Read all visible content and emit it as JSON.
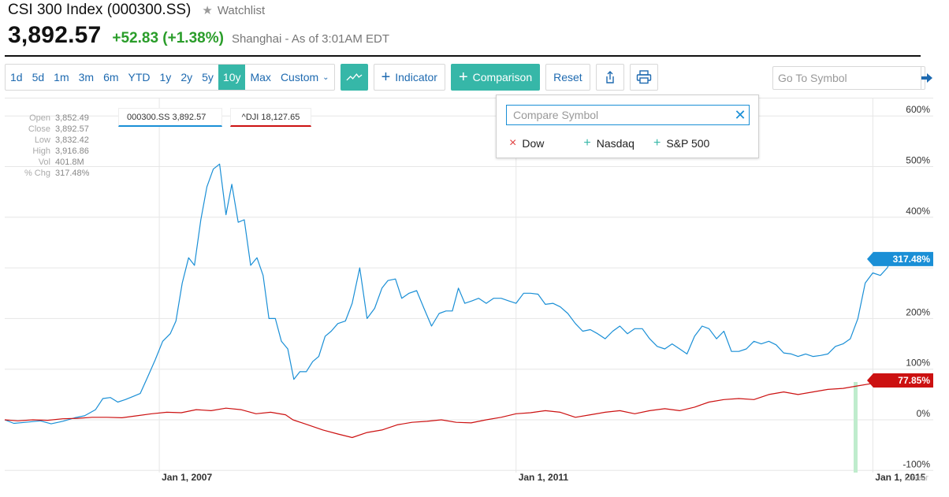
{
  "header": {
    "title": "CSI 300 Index (000300.SS)",
    "watchlist_label": "Watchlist",
    "price": "3,892.57",
    "change": "+52.83 (+1.38%)",
    "exchange_info": "Shanghai - As of 3:01AM EDT",
    "change_color": "#2a9d2a"
  },
  "toolbar": {
    "ranges": [
      "1d",
      "5d",
      "1m",
      "3m",
      "6m",
      "YTD",
      "1y",
      "2y",
      "5y",
      "10y",
      "Max"
    ],
    "active_range": "10y",
    "custom_label": "Custom",
    "indicator_label": "Indicator",
    "comparison_label": "Comparison",
    "reset_label": "Reset",
    "goto_placeholder": "Go To Symbol",
    "accent": "#36b7a8"
  },
  "stats": [
    {
      "label": "Open",
      "value": "3,852.49"
    },
    {
      "label": "Close",
      "value": "3,892.57"
    },
    {
      "label": "Low",
      "value": "3,832.42"
    },
    {
      "label": "High",
      "value": "3,916.86"
    },
    {
      "label": "Vol",
      "value": "401.8M"
    },
    {
      "label": "% Chg",
      "value": "317.48%"
    }
  ],
  "legend": {
    "primary": "000300.SS 3,892.57",
    "secondary": "^DJI 18,127.65"
  },
  "comparison_panel": {
    "placeholder": "Compare Symbol",
    "options": [
      {
        "label": "Dow",
        "symbol": "×"
      },
      {
        "label": "Nasdaq",
        "symbol": "+"
      },
      {
        "label": "S&P 500",
        "symbol": "+"
      }
    ]
  },
  "chart_data": {
    "type": "line",
    "scale": "Linear",
    "ylim": [
      -100,
      600
    ],
    "yticks": [
      600,
      500,
      400,
      300,
      200,
      100,
      0,
      -100
    ],
    "ytick_labels": [
      "600%",
      "500%",
      "400%",
      "300%",
      "200%",
      "100%",
      "0%",
      "-100%"
    ],
    "xlim": [
      "2005-04-08",
      "2015-04-10"
    ],
    "xtick_labels": [
      {
        "date": "2007-01-01",
        "label": "Jan 1, 2007"
      },
      {
        "date": "2011-01-01",
        "label": "Jan 1, 2011"
      },
      {
        "date": "2015-01-01",
        "label": "Jan 1, 2015"
      }
    ],
    "series": [
      {
        "name": "000300.SS",
        "color": "#1a8fd6",
        "last_label": "317.48%",
        "points": [
          [
            "2005-04-08",
            0
          ],
          [
            "2005-05-15",
            -7
          ],
          [
            "2005-07-01",
            -5
          ],
          [
            "2005-09-01",
            -2
          ],
          [
            "2005-10-15",
            -8
          ],
          [
            "2005-12-01",
            -3
          ],
          [
            "2006-01-20",
            4
          ],
          [
            "2006-03-01",
            8
          ],
          [
            "2006-04-15",
            20
          ],
          [
            "2006-05-15",
            42
          ],
          [
            "2006-06-15",
            44
          ],
          [
            "2006-07-15",
            35
          ],
          [
            "2006-08-15",
            40
          ],
          [
            "2006-09-15",
            46
          ],
          [
            "2006-10-15",
            52
          ],
          [
            "2006-11-15",
            85
          ],
          [
            "2006-12-15",
            118
          ],
          [
            "2007-01-15",
            155
          ],
          [
            "2007-02-15",
            170
          ],
          [
            "2007-03-10",
            195
          ],
          [
            "2007-04-05",
            270
          ],
          [
            "2007-05-01",
            320
          ],
          [
            "2007-05-25",
            305
          ],
          [
            "2007-06-20",
            395
          ],
          [
            "2007-07-15",
            460
          ],
          [
            "2007-08-10",
            495
          ],
          [
            "2007-09-05",
            505
          ],
          [
            "2007-10-01",
            405
          ],
          [
            "2007-10-25",
            465
          ],
          [
            "2007-11-20",
            390
          ],
          [
            "2007-12-15",
            395
          ],
          [
            "2008-01-10",
            305
          ],
          [
            "2008-02-05",
            320
          ],
          [
            "2008-03-01",
            285
          ],
          [
            "2008-03-25",
            200
          ],
          [
            "2008-04-20",
            200
          ],
          [
            "2008-05-15",
            155
          ],
          [
            "2008-06-10",
            140
          ],
          [
            "2008-07-05",
            80
          ],
          [
            "2008-07-30",
            95
          ],
          [
            "2008-08-25",
            95
          ],
          [
            "2008-09-20",
            115
          ],
          [
            "2008-10-15",
            125
          ],
          [
            "2008-11-10",
            165
          ],
          [
            "2008-12-05",
            175
          ],
          [
            "2009-01-01",
            190
          ],
          [
            "2009-02-01",
            195
          ],
          [
            "2009-03-01",
            230
          ],
          [
            "2009-04-01",
            300
          ],
          [
            "2009-05-01",
            200
          ],
          [
            "2009-06-01",
            220
          ],
          [
            "2009-07-01",
            260
          ],
          [
            "2009-07-25",
            275
          ],
          [
            "2009-08-25",
            278
          ],
          [
            "2009-09-20",
            240
          ],
          [
            "2009-10-20",
            250
          ],
          [
            "2009-11-20",
            255
          ],
          [
            "2009-12-20",
            220
          ],
          [
            "2010-01-20",
            185
          ],
          [
            "2010-02-20",
            210
          ],
          [
            "2010-03-20",
            215
          ],
          [
            "2010-04-15",
            215
          ],
          [
            "2010-05-10",
            260
          ],
          [
            "2010-06-05",
            230
          ],
          [
            "2010-07-05",
            235
          ],
          [
            "2010-08-01",
            240
          ],
          [
            "2010-09-01",
            230
          ],
          [
            "2010-10-01",
            240
          ],
          [
            "2010-11-01",
            240
          ],
          [
            "2010-12-01",
            235
          ],
          [
            "2011-01-01",
            230
          ],
          [
            "2011-02-01",
            250
          ],
          [
            "2011-03-01",
            250
          ],
          [
            "2011-04-01",
            248
          ],
          [
            "2011-05-01",
            228
          ],
          [
            "2011-06-01",
            230
          ],
          [
            "2011-07-01",
            223
          ],
          [
            "2011-08-01",
            210
          ],
          [
            "2011-09-01",
            190
          ],
          [
            "2011-10-01",
            175
          ],
          [
            "2011-11-01",
            178
          ],
          [
            "2011-12-01",
            170
          ],
          [
            "2012-01-01",
            160
          ],
          [
            "2012-02-01",
            175
          ],
          [
            "2012-03-01",
            185
          ],
          [
            "2012-04-01",
            170
          ],
          [
            "2012-05-01",
            180
          ],
          [
            "2012-06-01",
            180
          ],
          [
            "2012-07-01",
            160
          ],
          [
            "2012-08-01",
            145
          ],
          [
            "2012-09-01",
            140
          ],
          [
            "2012-10-01",
            150
          ],
          [
            "2012-11-01",
            140
          ],
          [
            "2012-12-01",
            130
          ],
          [
            "2013-01-01",
            165
          ],
          [
            "2013-02-01",
            185
          ],
          [
            "2013-03-01",
            180
          ],
          [
            "2013-04-01",
            160
          ],
          [
            "2013-05-01",
            175
          ],
          [
            "2013-06-01",
            135
          ],
          [
            "2013-07-01",
            135
          ],
          [
            "2013-08-01",
            140
          ],
          [
            "2013-09-01",
            155
          ],
          [
            "2013-10-01",
            150
          ],
          [
            "2013-11-01",
            155
          ],
          [
            "2013-12-01",
            148
          ],
          [
            "2014-01-01",
            132
          ],
          [
            "2014-02-01",
            130
          ],
          [
            "2014-03-01",
            125
          ],
          [
            "2014-04-01",
            130
          ],
          [
            "2014-05-01",
            125
          ],
          [
            "2014-06-01",
            127
          ],
          [
            "2014-07-01",
            130
          ],
          [
            "2014-08-01",
            145
          ],
          [
            "2014-09-01",
            150
          ],
          [
            "2014-10-01",
            160
          ],
          [
            "2014-11-01",
            200
          ],
          [
            "2014-12-01",
            270
          ],
          [
            "2015-01-01",
            290
          ],
          [
            "2015-02-01",
            285
          ],
          [
            "2015-03-01",
            300
          ],
          [
            "2015-03-20",
            317.48
          ],
          [
            "2015-04-10",
            317.48
          ]
        ]
      },
      {
        "name": "^DJI",
        "color": "#c11",
        "last_label": "77.85%",
        "points": [
          [
            "2005-04-08",
            0
          ],
          [
            "2005-06-01",
            -2
          ],
          [
            "2005-08-01",
            0
          ],
          [
            "2005-10-01",
            -1
          ],
          [
            "2005-12-01",
            2
          ],
          [
            "2006-02-01",
            3
          ],
          [
            "2006-04-01",
            5
          ],
          [
            "2006-06-01",
            5
          ],
          [
            "2006-08-01",
            4
          ],
          [
            "2006-10-01",
            8
          ],
          [
            "2006-12-01",
            12
          ],
          [
            "2007-02-01",
            15
          ],
          [
            "2007-04-01",
            14
          ],
          [
            "2007-06-01",
            20
          ],
          [
            "2007-08-01",
            18
          ],
          [
            "2007-10-01",
            23
          ],
          [
            "2007-12-01",
            20
          ],
          [
            "2008-02-01",
            12
          ],
          [
            "2008-04-01",
            15
          ],
          [
            "2008-06-01",
            10
          ],
          [
            "2008-07-01",
            0
          ],
          [
            "2008-09-01",
            -10
          ],
          [
            "2008-11-01",
            -20
          ],
          [
            "2009-01-01",
            -28
          ],
          [
            "2009-03-01",
            -35
          ],
          [
            "2009-05-01",
            -25
          ],
          [
            "2009-07-01",
            -20
          ],
          [
            "2009-09-01",
            -10
          ],
          [
            "2009-11-01",
            -5
          ],
          [
            "2010-01-01",
            -3
          ],
          [
            "2010-03-01",
            0
          ],
          [
            "2010-05-01",
            -5
          ],
          [
            "2010-07-01",
            -6
          ],
          [
            "2010-09-01",
            0
          ],
          [
            "2010-11-01",
            5
          ],
          [
            "2011-01-01",
            12
          ],
          [
            "2011-03-01",
            14
          ],
          [
            "2011-05-01",
            18
          ],
          [
            "2011-07-01",
            15
          ],
          [
            "2011-09-01",
            5
          ],
          [
            "2011-11-01",
            10
          ],
          [
            "2012-01-01",
            15
          ],
          [
            "2012-03-01",
            18
          ],
          [
            "2012-05-01",
            12
          ],
          [
            "2012-07-01",
            18
          ],
          [
            "2012-09-01",
            22
          ],
          [
            "2012-11-01",
            18
          ],
          [
            "2013-01-01",
            25
          ],
          [
            "2013-03-01",
            35
          ],
          [
            "2013-05-01",
            40
          ],
          [
            "2013-07-01",
            42
          ],
          [
            "2013-09-01",
            40
          ],
          [
            "2013-11-01",
            50
          ],
          [
            "2014-01-01",
            55
          ],
          [
            "2014-03-01",
            50
          ],
          [
            "2014-05-01",
            55
          ],
          [
            "2014-07-01",
            60
          ],
          [
            "2014-09-01",
            62
          ],
          [
            "2014-11-01",
            67
          ],
          [
            "2015-01-01",
            72
          ],
          [
            "2015-02-01",
            65
          ],
          [
            "2015-03-01",
            77.85
          ],
          [
            "2015-04-10",
            77.85
          ]
        ]
      }
    ],
    "grid": true,
    "legend_position": "top-left"
  }
}
